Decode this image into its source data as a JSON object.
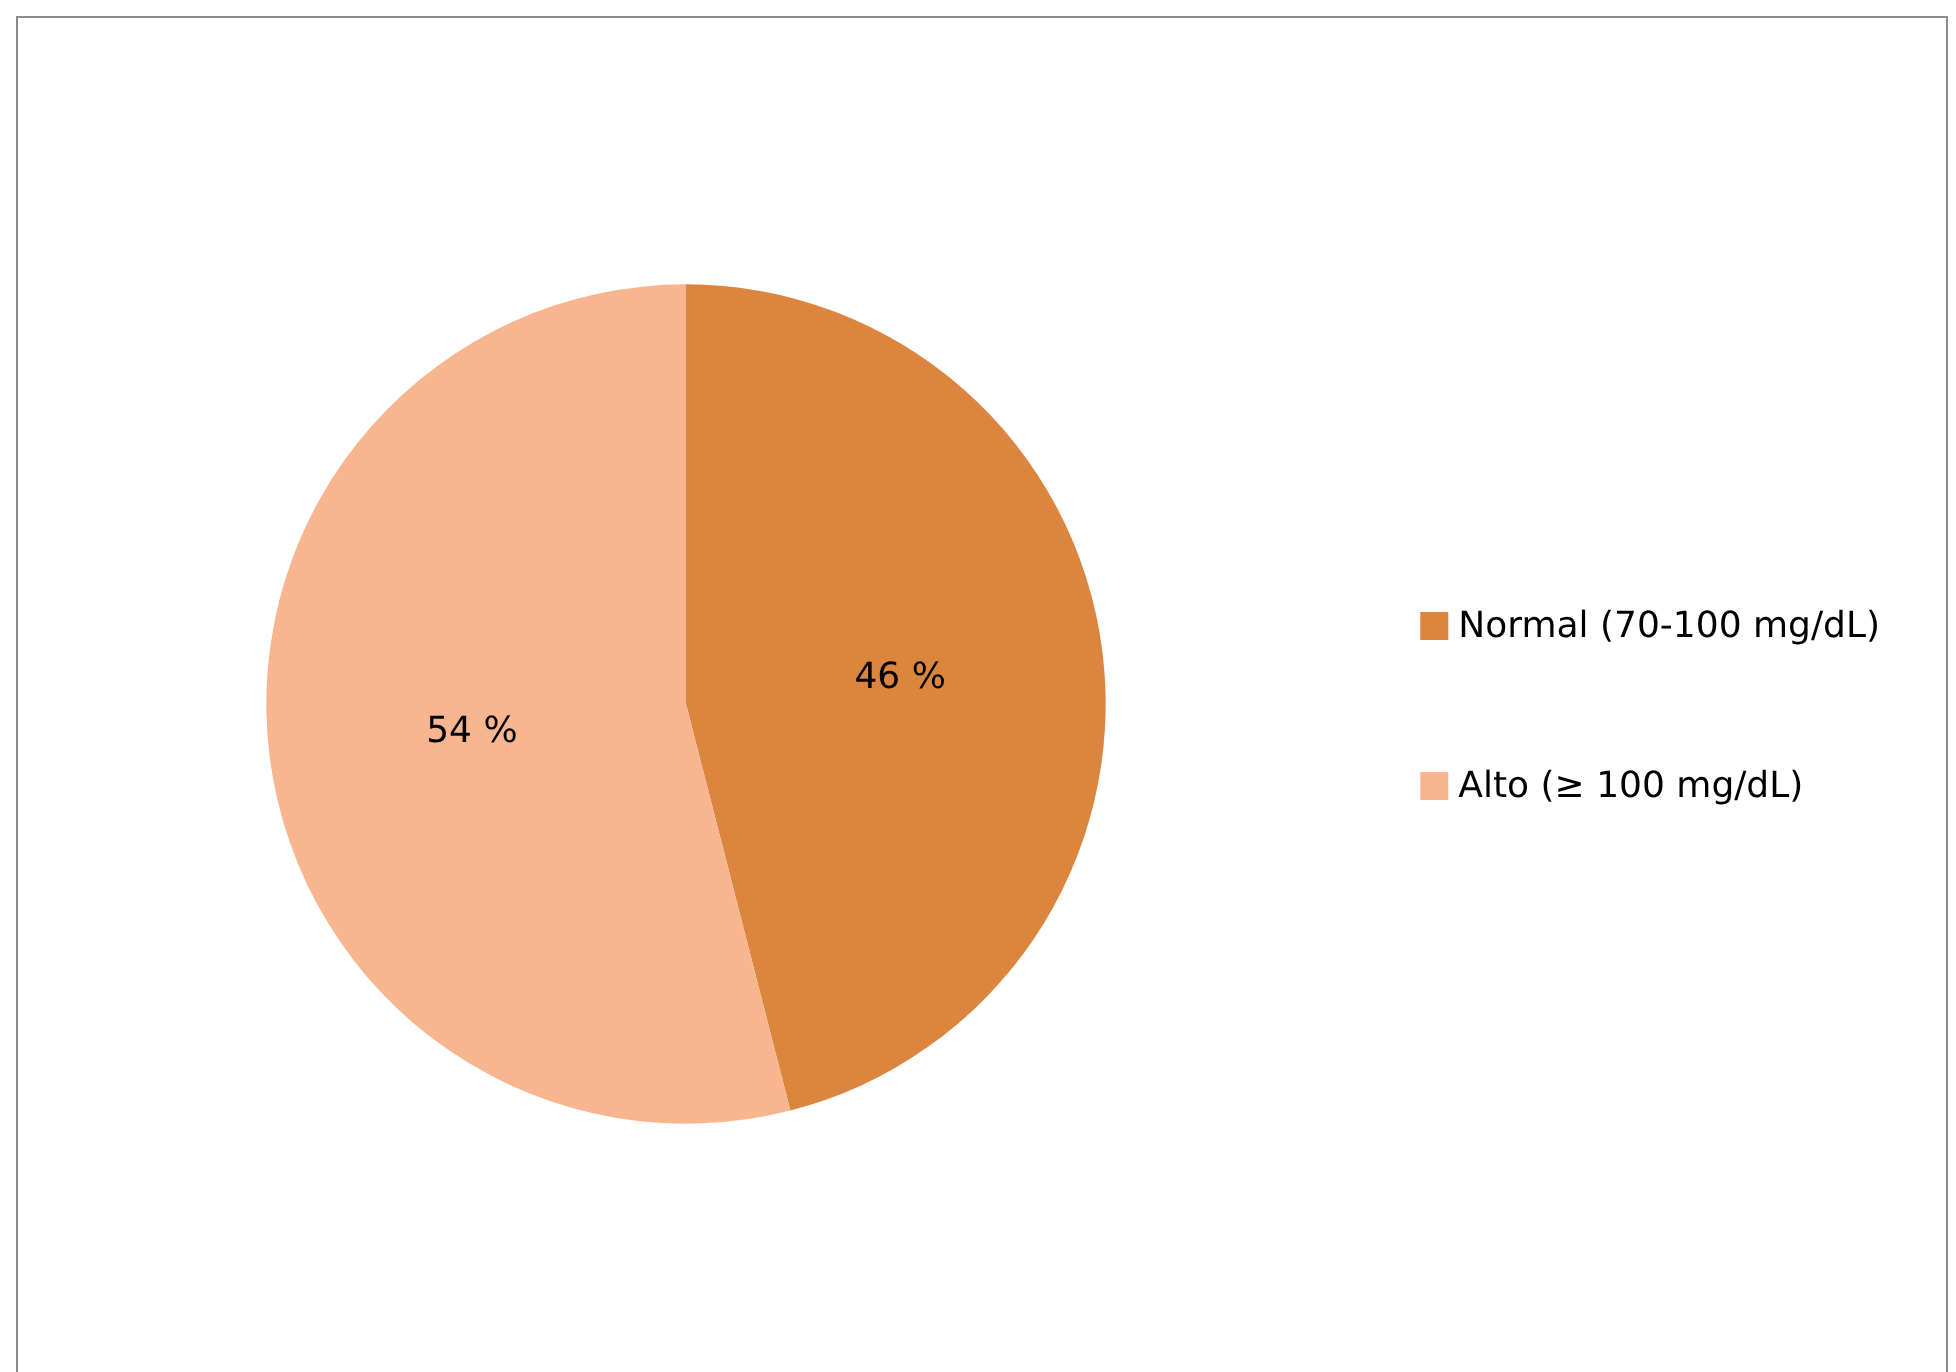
{
  "chart_data": {
    "type": "pie",
    "categories": [
      "Normal (70-100 mg/dL)",
      "Alto (≥ 100 mg/dL)"
    ],
    "values": [
      46,
      54
    ],
    "colors": [
      "#dc853e",
      "#f8b690"
    ],
    "value_labels": [
      "46 %",
      "54 %"
    ],
    "legend": "right"
  }
}
